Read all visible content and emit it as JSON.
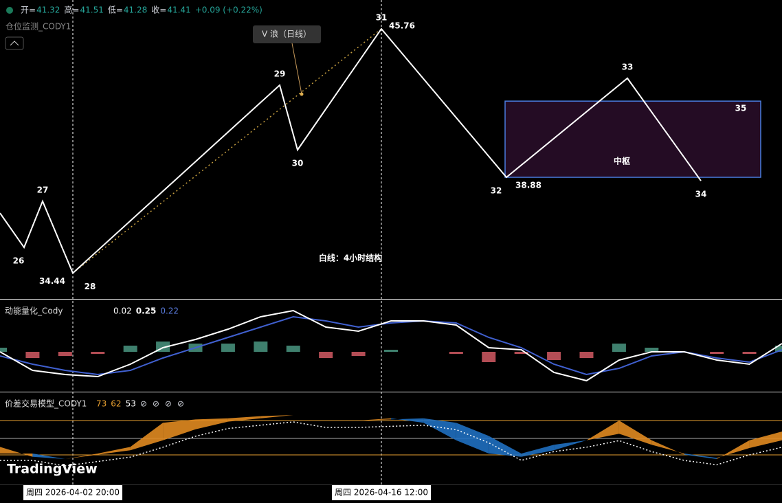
{
  "header": {
    "ohlc": [
      {
        "label": "开=",
        "value": 41.32
      },
      {
        "label": "高=",
        "value": 41.51
      },
      {
        "label": "低=",
        "value": 41.28
      },
      {
        "label": "收=",
        "value": 41.41
      }
    ],
    "change": "+0.09 (+0.22%)",
    "indicator": "仓位监测_CODY1"
  },
  "price_pane": {
    "start_price": 37.22,
    "pivots": [
      {
        "label": "26",
        "price": 35.63
      },
      {
        "label": "27",
        "price": 37.77
      },
      {
        "label": "28",
        "price": 34.44
      },
      {
        "label": "29",
        "price": 43.15
      },
      {
        "label": "30",
        "price": 40.15
      },
      {
        "label": "31",
        "price": 45.76
      },
      {
        "label": "32",
        "price": 38.88
      },
      {
        "label": "33",
        "price": 43.47
      },
      {
        "label": "34",
        "price": 38.72
      }
    ],
    "extra_pivot": {
      "label": "35",
      "price": 41.42
    },
    "center_range": [
      38.88,
      42.41
    ],
    "center_label": "中枢",
    "wave_label": "V 浪（日线）",
    "note": "白线：4小时结构"
  },
  "momentum_pane": {
    "name": "动能量化_Cody",
    "readings": [
      "0.02",
      "0.25",
      "0.22"
    ],
    "fast": [
      0.0,
      -0.45,
      -0.55,
      -0.6,
      -0.3,
      0.1,
      0.3,
      0.55,
      0.85,
      1.0,
      0.6,
      0.5,
      0.75,
      0.75,
      0.65,
      0.1,
      0.05,
      -0.5,
      -0.7,
      -0.2,
      0.0,
      0.0,
      -0.2,
      -0.3,
      0.2
    ],
    "slow": [
      -0.1,
      -0.3,
      -0.45,
      -0.55,
      -0.45,
      -0.15,
      0.1,
      0.35,
      0.6,
      0.85,
      0.75,
      0.6,
      0.7,
      0.75,
      0.7,
      0.35,
      0.1,
      -0.3,
      -0.55,
      -0.4,
      -0.1,
      0.0,
      -0.15,
      -0.25,
      0.05
    ]
  },
  "spread_pane": {
    "name": "价差交易模型_CODY1",
    "readings": [
      "73",
      "62",
      "53"
    ],
    "flags": [
      "⊘",
      "⊘",
      "⊘",
      "⊘"
    ],
    "fast": [
      56,
      47,
      45,
      50,
      56,
      78,
      81,
      82,
      84,
      85,
      80,
      80,
      82,
      78,
      62,
      50,
      47,
      53,
      62,
      80,
      62,
      49,
      45,
      62,
      70
    ],
    "slow": [
      50,
      50,
      45,
      49,
      53,
      62,
      72,
      79,
      82,
      85,
      80,
      80,
      81,
      82,
      78,
      66,
      50,
      58,
      62,
      68,
      58,
      50,
      46,
      55,
      62
    ]
  },
  "time_labels": [
    "周四 2026-04-02   20:00",
    "周四 2026-04-16   12:00"
  ],
  "logo": "TradingView"
}
